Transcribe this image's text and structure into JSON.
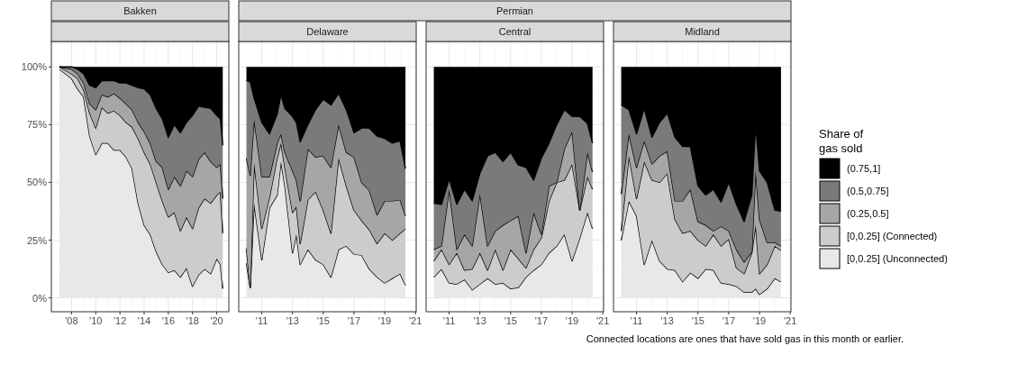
{
  "chart_data": [
    {
      "type": "area",
      "title": "Bakken",
      "stacked": true,
      "grid": true,
      "x": [
        2007,
        2008,
        2008.5,
        2009,
        2009.5,
        2010,
        2010.5,
        2011,
        2011.5,
        2012,
        2012.5,
        2013,
        2013.5,
        2014,
        2014.5,
        2015,
        2015.5,
        2016,
        2016.5,
        2017,
        2017.5,
        2018,
        2018.5,
        2019,
        2019.5,
        2020,
        2020.3,
        2020.5
      ],
      "xlim": [
        2006.33,
        2021
      ],
      "xticks": [
        {
          "value": 2008,
          "label": "'08"
        },
        {
          "value": 2010,
          "label": "'10"
        },
        {
          "value": 2012,
          "label": "'12"
        },
        {
          "value": 2014,
          "label": "'14"
        },
        {
          "value": 2016,
          "label": "'16"
        },
        {
          "value": 2018,
          "label": "'18"
        },
        {
          "value": 2020,
          "label": "'20"
        }
      ],
      "ylim": [
        -6,
        111
      ],
      "yticks": [
        {
          "value": 0,
          "label": "0%"
        },
        {
          "value": 25,
          "label": "25%"
        },
        {
          "value": 50,
          "label": "50%"
        },
        {
          "value": 75,
          "label": "75%"
        },
        {
          "value": 100,
          "label": "100%"
        }
      ],
      "series": [
        {
          "color": "#e8e8e8",
          "values": [
            99,
            95,
            90.5,
            87,
            70,
            62,
            67,
            67,
            64,
            64,
            61,
            56,
            41,
            31.5,
            27.5,
            20,
            14.5,
            11,
            12,
            9,
            13,
            5,
            10,
            12.5,
            10.5,
            17,
            14.5,
            4
          ]
        },
        {
          "color": "#cccccc",
          "values": [
            1,
            2,
            4.5,
            3,
            10,
            11.5,
            15.5,
            13,
            17,
            15,
            15,
            18,
            28,
            31.5,
            30.5,
            30,
            27.5,
            24,
            25,
            20,
            22,
            25,
            29,
            30.5,
            30.5,
            27.5,
            31.5,
            24
          ]
        },
        {
          "color": "#a6a6a6",
          "values": [
            0,
            2,
            2,
            3,
            4,
            8,
            5.5,
            7,
            7.5,
            7.5,
            8,
            7.5,
            7,
            9,
            9,
            9,
            14.5,
            12,
            15.5,
            19.5,
            20,
            22.5,
            21,
            20,
            18,
            12,
            12,
            15
          ]
        },
        {
          "color": "#7a7a7a",
          "values": [
            0,
            1,
            2,
            4,
            8,
            9.5,
            6,
            7,
            5.5,
            6.5,
            9,
            10.5,
            15,
            18.5,
            21,
            23,
            21,
            22.5,
            22.5,
            23,
            21,
            26.5,
            23,
            19.5,
            23,
            22.5,
            19.5,
            23
          ]
        },
        {
          "color": "#000000",
          "values": [
            0,
            0,
            1,
            3,
            8,
            9,
            6,
            6,
            6,
            7,
            7,
            8,
            9,
            9.5,
            12,
            18,
            22.5,
            30.5,
            25,
            28.5,
            24,
            21,
            17,
            17.5,
            18,
            21,
            22.5,
            34
          ]
        }
      ]
    },
    {
      "type": "area",
      "title": "Delaware",
      "annotations": [
        "Permian"
      ],
      "stacked": true,
      "grid": true,
      "tick_labels": "x",
      "x": [
        2010,
        2010.25,
        2010.5,
        2011,
        2011.5,
        2012,
        2012.25,
        2012.5,
        2013,
        2013.25,
        2013.5,
        2014,
        2014.5,
        2015,
        2015.5,
        2016,
        2016.5,
        2017,
        2017.5,
        2018,
        2018.5,
        2019,
        2019.5,
        2020,
        2020.35
      ],
      "xlim": [
        2009.5,
        2021.05
      ],
      "xticks": [
        {
          "value": 2011,
          "label": "'11"
        },
        {
          "value": 2013,
          "label": "'13"
        },
        {
          "value": 2015,
          "label": "'15"
        },
        {
          "value": 2017,
          "label": "'17"
        },
        {
          "value": 2019,
          "label": "'19"
        },
        {
          "value": 2021,
          "label": "'21"
        }
      ],
      "ylim": [
        -6,
        111
      ],
      "yticks": [
        {
          "value": 0,
          "label": null
        },
        {
          "value": 25,
          "label": null
        },
        {
          "value": 50,
          "label": null
        },
        {
          "value": 75,
          "label": null
        },
        {
          "value": 100,
          "label": null
        }
      ],
      "series": [
        {
          "color": "#e8e8e8",
          "values": [
            15,
            4.5,
            41,
            16.5,
            39,
            44.5,
            59,
            48.5,
            19.5,
            27.5,
            14.5,
            21,
            16.5,
            14.5,
            9,
            21,
            22.5,
            19,
            18.5,
            12.5,
            9,
            6.5,
            8.5,
            10.5,
            5.5
          ]
        },
        {
          "color": "#cccccc",
          "values": [
            6.5,
            0,
            17.5,
            13.5,
            4.5,
            16,
            8,
            8,
            17.5,
            12,
            9,
            21.5,
            29.5,
            23.5,
            19,
            39.5,
            26,
            19,
            15,
            17,
            14.5,
            21.5,
            16.5,
            17.5,
            24.5
          ]
        },
        {
          "color": "#a6a6a6",
          "values": [
            39,
            48.5,
            19,
            22.5,
            9,
            6.5,
            4,
            6.5,
            18,
            11.5,
            18.5,
            22,
            15,
            23.5,
            28.5,
            14.5,
            14.5,
            23,
            16.5,
            17,
            12.5,
            14,
            17,
            14.5,
            5.5
          ]
        },
        {
          "color": "#7a7a7a",
          "values": [
            33.5,
            40.5,
            9,
            23.5,
            18.5,
            12.5,
            17,
            19,
            23.5,
            25,
            25.5,
            10.5,
            20.5,
            24.5,
            27,
            13.5,
            18.5,
            10.5,
            23.5,
            27,
            34,
            27,
            25,
            25.5,
            20.5
          ]
        },
        {
          "color": "#000000",
          "values": [
            6,
            6.5,
            13.5,
            24,
            29,
            20.5,
            12,
            18,
            21.5,
            24,
            32.5,
            25,
            18.5,
            14,
            16.5,
            11.5,
            18.5,
            28.5,
            26.5,
            26.5,
            30,
            31,
            33,
            32,
            44
          ]
        }
      ]
    },
    {
      "type": "area",
      "title": "Central",
      "stacked": true,
      "grid": true,
      "tick_labels": "x",
      "x": [
        2010,
        2010.5,
        2011,
        2011.5,
        2012,
        2012.5,
        2013,
        2013.5,
        2014,
        2014.5,
        2015,
        2015.5,
        2016,
        2016.5,
        2017,
        2017.5,
        2018,
        2018.5,
        2019,
        2019.5,
        2020,
        2020.33
      ],
      "xlim": [
        2009.5,
        2021.05
      ],
      "xticks": [
        {
          "value": 2011,
          "label": "'11"
        },
        {
          "value": 2013,
          "label": "'13"
        },
        {
          "value": 2015,
          "label": "'15"
        },
        {
          "value": 2017,
          "label": "'17"
        },
        {
          "value": 2019,
          "label": "'19"
        },
        {
          "value": 2021,
          "label": "'21"
        }
      ],
      "ylim": [
        -6,
        111
      ],
      "yticks": [
        {
          "value": 0,
          "label": null
        },
        {
          "value": 25,
          "label": null
        },
        {
          "value": 50,
          "label": null
        },
        {
          "value": 75,
          "label": null
        },
        {
          "value": 100,
          "label": null
        }
      ],
      "series": [
        {
          "color": "#e8e8e8",
          "values": [
            9,
            12.5,
            6.5,
            6,
            8,
            3.5,
            6,
            8.5,
            6,
            6.5,
            4,
            4.5,
            9,
            12,
            14.5,
            19.5,
            22.5,
            27.5,
            16,
            26,
            37,
            30
          ]
        },
        {
          "color": "#cccccc",
          "values": [
            7,
            8.5,
            8,
            13.5,
            4,
            9,
            13.5,
            3.5,
            15,
            5.5,
            17,
            12.5,
            4,
            9,
            11.5,
            22.5,
            27.5,
            23.5,
            42,
            12,
            15.5,
            17
          ]
        },
        {
          "color": "#a6a6a6",
          "values": [
            5,
            1.5,
            32.5,
            1.5,
            15.5,
            10,
            25.5,
            10.5,
            8,
            19.5,
            12.5,
            18.5,
            6.5,
            16,
            1.5,
            6.5,
            0,
            13.5,
            14,
            0,
            10.5,
            7.5
          ]
        },
        {
          "color": "#7a7a7a",
          "values": [
            20,
            18,
            4.5,
            19.5,
            19.5,
            19.5,
            9,
            39,
            34,
            27.5,
            29.5,
            22,
            37,
            14,
            33,
            18.5,
            25,
            17,
            6.5,
            40.5,
            12.5,
            12.5
          ]
        },
        {
          "color": "#000000",
          "values": [
            59,
            59.5,
            48.5,
            59.5,
            53,
            58,
            46,
            38.5,
            37,
            41,
            37,
            42.5,
            43.5,
            49,
            39.5,
            33,
            25,
            18.5,
            21.5,
            21.5,
            24.5,
            33
          ]
        }
      ]
    },
    {
      "type": "area",
      "title": "Midland",
      "stacked": true,
      "grid": true,
      "tick_labels": "x",
      "legend": "right",
      "legend_title": "Share of\ngas sold",
      "annotations": [
        "Connected locations are ones that have sold gas in this month or earlier."
      ],
      "x": [
        2010,
        2010.5,
        2011,
        2011.5,
        2012,
        2012.5,
        2013,
        2013.5,
        2014,
        2014.5,
        2015,
        2015.5,
        2016,
        2016.5,
        2017,
        2017.5,
        2018,
        2018.5,
        2018.75,
        2019,
        2019.5,
        2020,
        2020.4
      ],
      "xlim": [
        2009.5,
        2021.05
      ],
      "xticks": [
        {
          "value": 2011,
          "label": "'11"
        },
        {
          "value": 2013,
          "label": "'13"
        },
        {
          "value": 2015,
          "label": "'15"
        },
        {
          "value": 2017,
          "label": "'17"
        },
        {
          "value": 2019,
          "label": "'19"
        },
        {
          "value": 2021,
          "label": "'21"
        }
      ],
      "ylim": [
        -6,
        111
      ],
      "yticks": [
        {
          "value": 0,
          "label": null
        },
        {
          "value": 25,
          "label": null
        },
        {
          "value": 50,
          "label": null
        },
        {
          "value": 75,
          "label": null
        },
        {
          "value": 100,
          "label": null
        }
      ],
      "series": [
        {
          "name": "[0,0.25] (Unconnected)",
          "color": "#e8e8e8",
          "values": [
            25,
            42,
            35.5,
            14.5,
            25,
            16,
            12.5,
            12,
            7,
            11,
            8.5,
            12.5,
            12,
            6.5,
            6,
            5,
            2.5,
            2.5,
            4,
            1.5,
            4,
            8.5,
            7
          ]
        },
        {
          "name": "[0,0.25] (Connected)",
          "color": "#cccccc",
          "values": [
            4,
            19.5,
            7.5,
            44.5,
            26,
            34,
            41.5,
            22,
            21,
            18,
            16.5,
            10,
            15.5,
            16,
            19.5,
            8,
            8,
            17,
            27.5,
            9,
            10.5,
            14,
            13.5
          ]
        },
        {
          "name": "(0.25,0.5]",
          "color": "#a6a6a6",
          "values": [
            16,
            9.5,
            13.5,
            9,
            7,
            11.5,
            9.5,
            8,
            14,
            18,
            8,
            9,
            1.5,
            8.5,
            3.5,
            8,
            5,
            0.5,
            23.5,
            23.5,
            9.5,
            1.5,
            2
          ]
        },
        {
          "name": "(0.5,0.75]",
          "color": "#7a7a7a",
          "values": [
            38.5,
            10.5,
            14.5,
            14,
            11.5,
            14.5,
            16.5,
            27.5,
            23.5,
            18.5,
            15.5,
            13,
            18,
            10.5,
            21,
            19.5,
            17.5,
            24.5,
            20,
            21,
            26,
            14,
            15
          ]
        },
        {
          "name": "(0.75,1]",
          "color": "#000000",
          "values": [
            16.5,
            18.5,
            29,
            18,
            30.5,
            24,
            20,
            30.5,
            34.5,
            34.5,
            51.5,
            55.5,
            53,
            58.5,
            50,
            59.5,
            67,
            55.5,
            25,
            45,
            50,
            62,
            62.5
          ]
        }
      ]
    }
  ]
}
